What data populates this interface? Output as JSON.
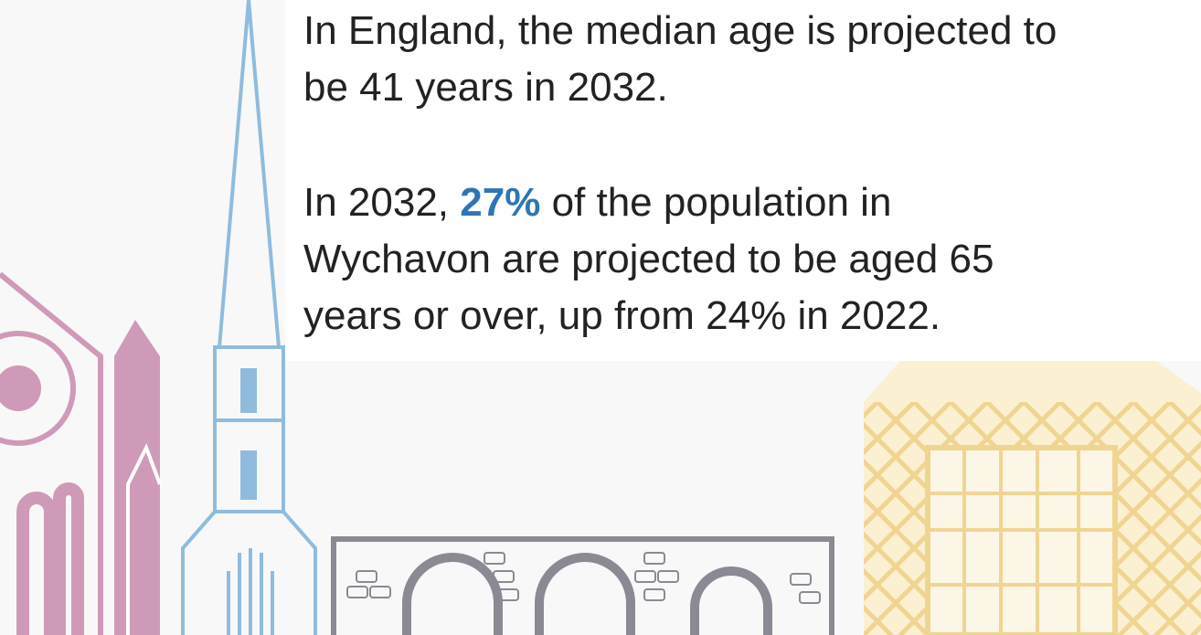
{
  "paragraphs": [
    {
      "lines": [
        "In England, the median age is projected to",
        "be 41 years in 2032."
      ]
    },
    {
      "lines": [
        {
          "before": "In 2032, ",
          "highlight": "27%",
          "after": " of the population in"
        },
        "Wychavon are projected to be aged 65",
        "years or over, up from 24% in 2022."
      ]
    }
  ]
}
